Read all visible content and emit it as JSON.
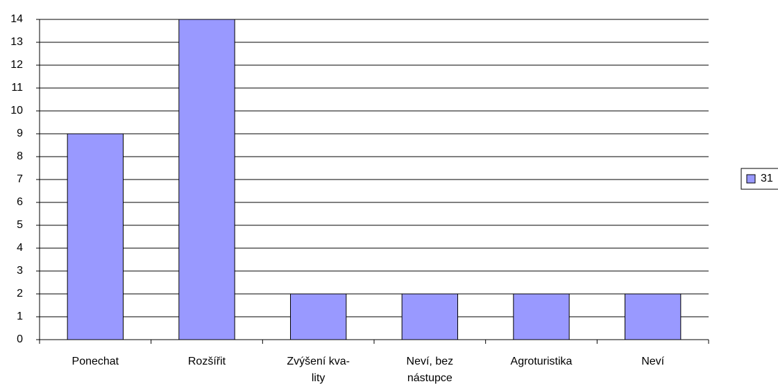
{
  "chart_data": {
    "type": "bar",
    "categories": [
      "Ponechat",
      "Rozšířit",
      "Zvýšení kva-\nlity",
      "Neví, bez\nnástupce",
      "Agroturistika",
      "Neví"
    ],
    "series": [
      {
        "name": "31",
        "color": "#9999ff",
        "values": [
          9,
          14,
          2,
          2,
          2,
          2
        ]
      }
    ],
    "ylim": [
      0,
      14
    ],
    "yticks": [
      0,
      1,
      2,
      3,
      4,
      5,
      6,
      7,
      8,
      9,
      10,
      11,
      12,
      13,
      14
    ],
    "grid": true,
    "legend": "right"
  }
}
